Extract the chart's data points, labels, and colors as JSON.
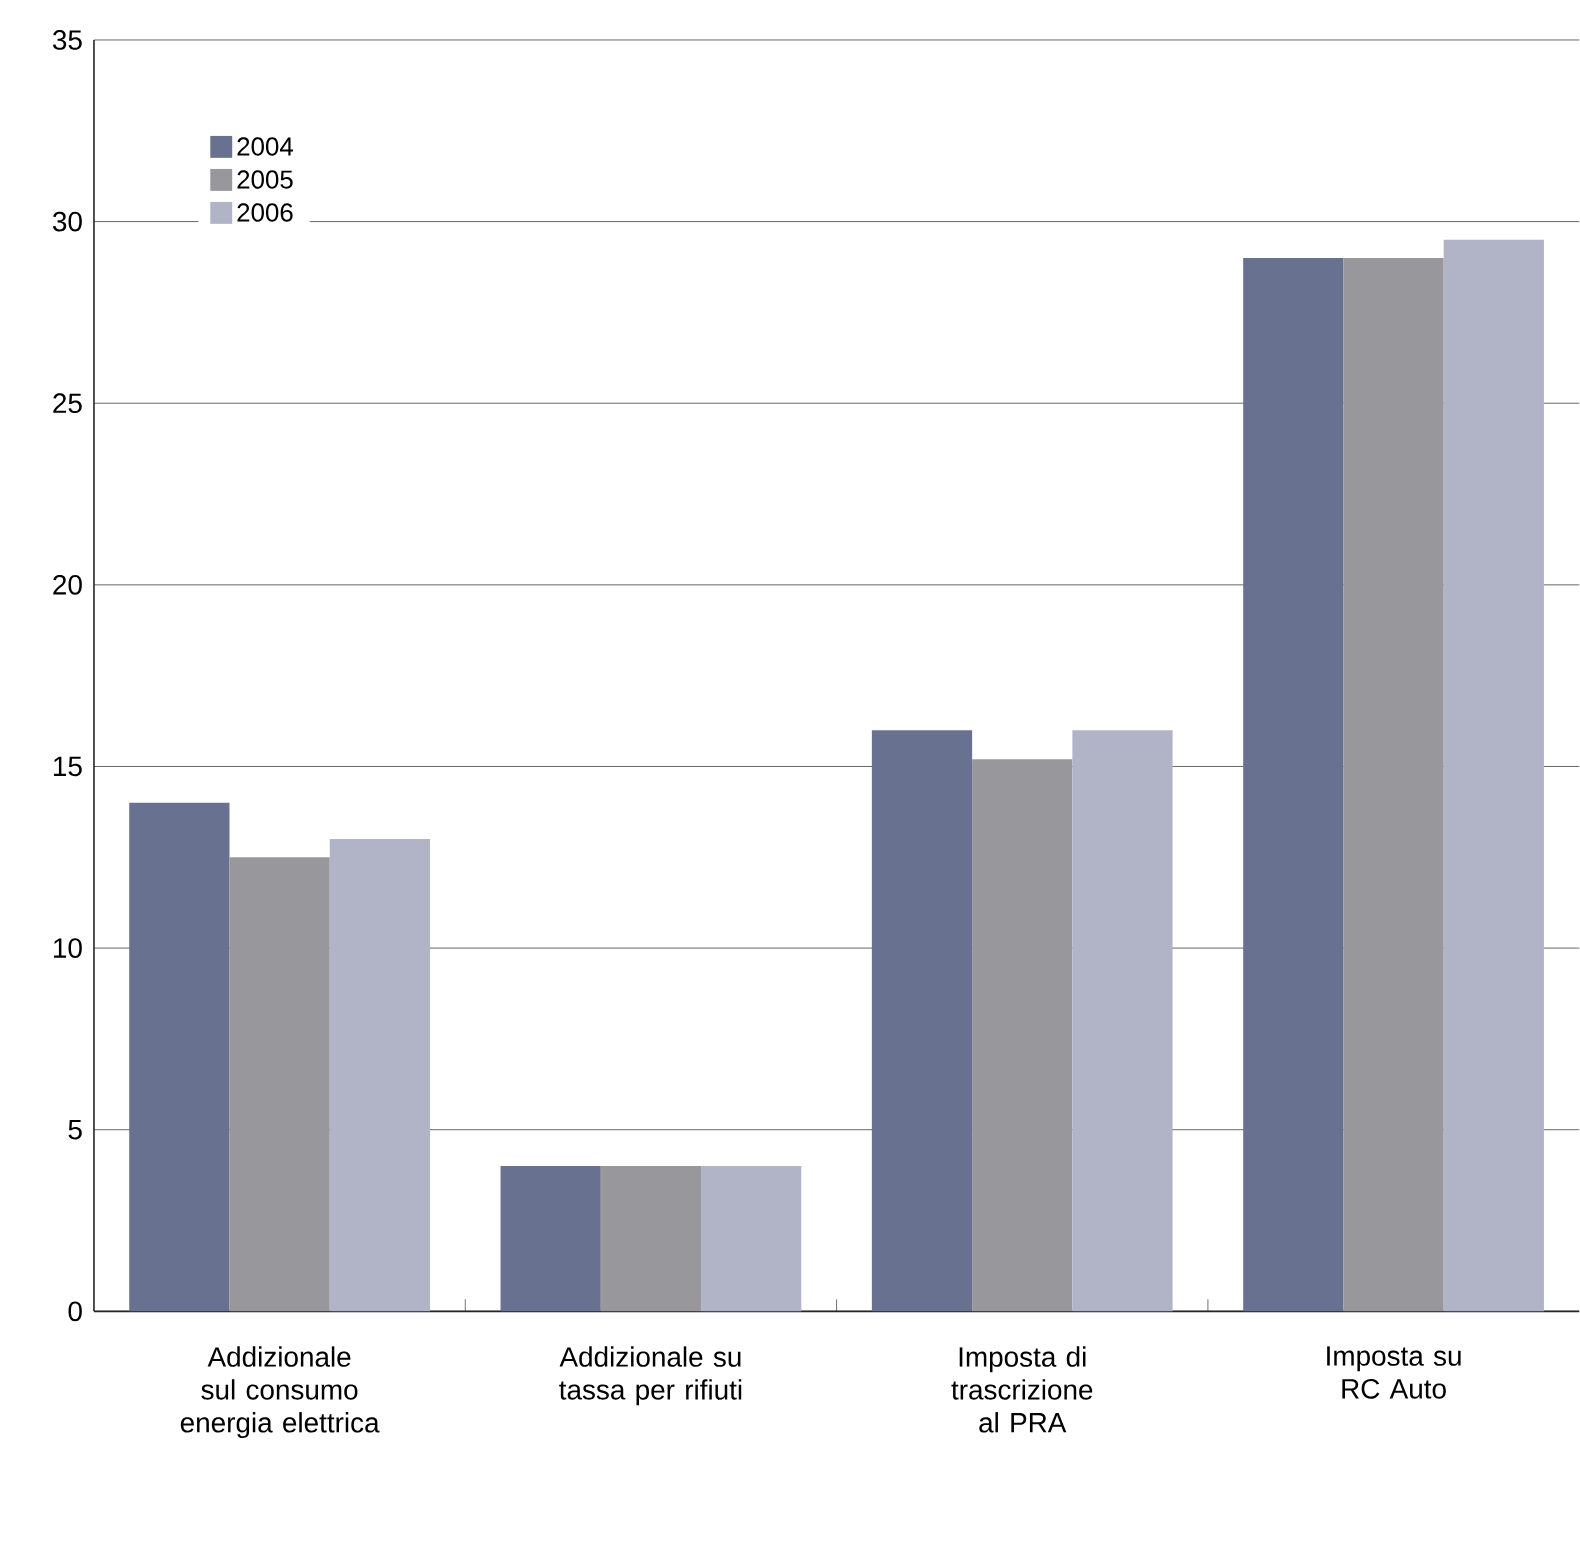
{
  "chart_data": {
    "type": "bar",
    "categories": [
      "Addizionale sul consumo energia elettrica",
      "Addizionale su tassa per rifiuti",
      "Imposta di trascrizione al PRA",
      "Imposta su RC Auto"
    ],
    "series": [
      {
        "name": "2004",
        "color": "#68718f",
        "values": [
          14,
          4,
          16,
          29
        ]
      },
      {
        "name": "2005",
        "color": "#98979c",
        "values": [
          12.5,
          4,
          15.2,
          29
        ]
      },
      {
        "name": "2006",
        "color": "#b1b4c6",
        "values": [
          13,
          4,
          16,
          29.5
        ]
      }
    ],
    "ylim": [
      0,
      35
    ],
    "yticks": [
      0,
      5,
      10,
      15,
      20,
      25,
      30,
      35
    ],
    "grid": "y",
    "legend": "top left"
  }
}
